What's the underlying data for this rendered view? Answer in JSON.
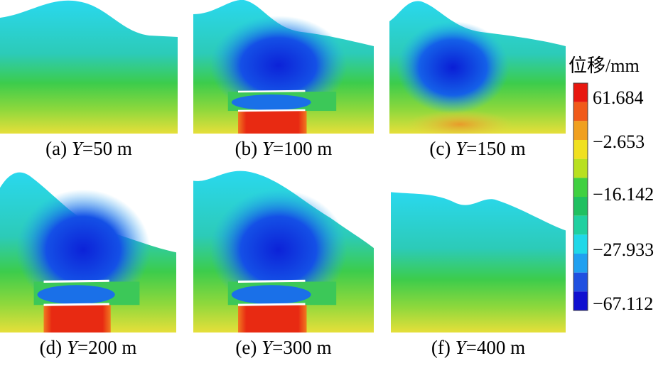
{
  "panels": [
    {
      "label": "(a)",
      "variable": "Y",
      "rest": "=50 m"
    },
    {
      "label": "(b)",
      "variable": "Y",
      "rest": "=100 m"
    },
    {
      "label": "(c)",
      "variable": "Y",
      "rest": "=150 m"
    },
    {
      "label": "(d)",
      "variable": "Y",
      "rest": "=200 m"
    },
    {
      "label": "(e)",
      "variable": "Y",
      "rest": "=300 m"
    },
    {
      "label": "(f)",
      "variable": "Y",
      "rest": "=400 m"
    }
  ],
  "colorbar": {
    "title": "位移/mm",
    "labels": [
      "61.684",
      "−2.653",
      "−16.142",
      "−27.933",
      "−67.112"
    ]
  }
}
